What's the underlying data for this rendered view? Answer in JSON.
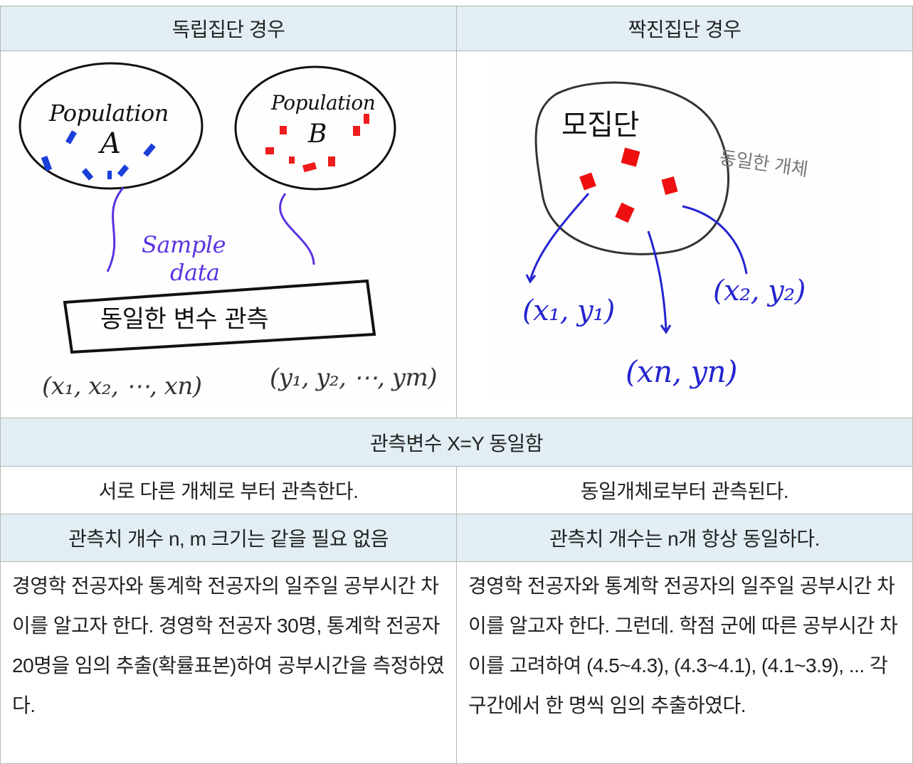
{
  "table": {
    "header": [
      "독립집단 경우",
      "짝진집단 경우"
    ],
    "sketches": [
      {
        "labels": [
          "Population",
          "A",
          "Population",
          "B",
          "Sample",
          "data",
          "동일한 변수 관측",
          "(x₁, x₂, ⋯, xn)",
          "(y₁, y₂, ⋯, ym)"
        ]
      },
      {
        "labels": [
          "모집단",
          "동일한 개체",
          "(x₁, y₁)",
          "(x₂, y₂)",
          "(xn, yn)"
        ]
      }
    ],
    "rows": [
      [
        "관측변수 X=Y 동일함"
      ],
      [
        "서로 다른 개체로 부터 관측한다.",
        "동일개체로부터 관측된다."
      ],
      [
        "관측치 개수 n, m  크기는 같을 필요 없음",
        "관측치 개수는 n개 항상 동일하다."
      ],
      [
        "경영학 전공자와 통계학 전공자의 일주일 공부시간 차이를 알고자 한다. 경영학 전공자 30명, 통계학 전공자 20명을 임의 추출(확률표본)하여 공부시간을 측정하였다.",
        "경영학 전공자와 통계학 전공자의 일주일 공부시간 차이를 알고자 한다. 그런데. 학점 군에 따른 공부시간 차이를 고려하여 (4.5~4.3), (4.3~4.1), (4.1~3.9), ... 각 구간에서 한 명씩 임의 추출하였다."
      ]
    ]
  }
}
